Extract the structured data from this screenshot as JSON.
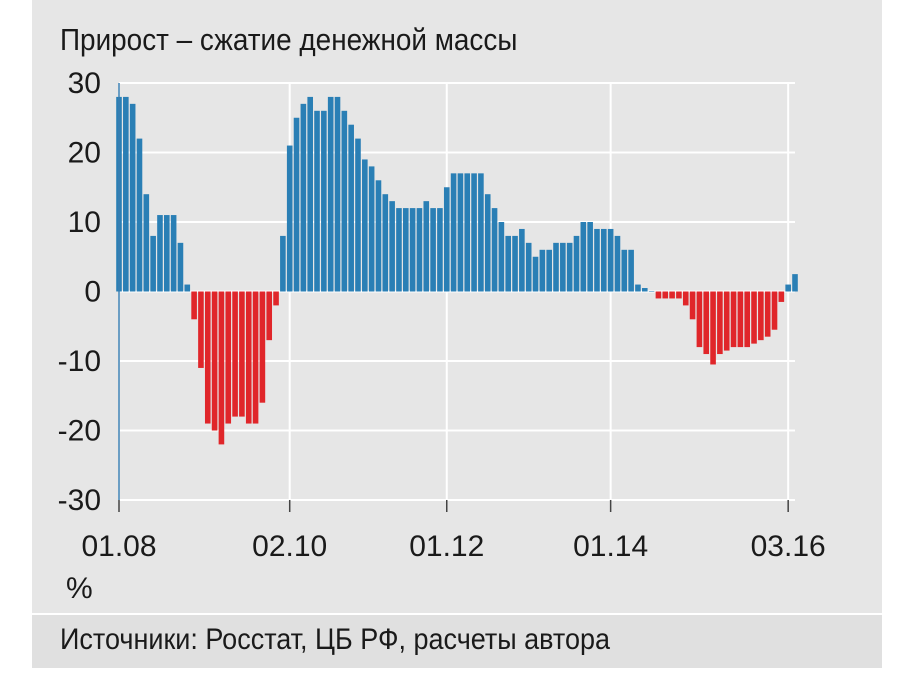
{
  "chart_data": {
    "type": "bar",
    "title": "Прирост – сжатие денежной массы",
    "ylabel": "%",
    "source": "Источники: Росстат, ЦБ РФ, расчеты автора",
    "ylim": [
      -30,
      30
    ],
    "yticks": [
      30,
      20,
      10,
      0,
      -10,
      -20,
      -30
    ],
    "ytick_labels": [
      "30",
      "20",
      "10",
      "0",
      "-10",
      "-20",
      "-30"
    ],
    "xtick_labels": [
      "01.08",
      "02.10",
      "01.12",
      "01.14",
      "03.16"
    ],
    "xtick_index": [
      0,
      25,
      48,
      72,
      98
    ],
    "grid": true,
    "colors": {
      "positive": "#2a7fb5",
      "negative": "#e0262a",
      "grid": "#ffffff",
      "axis": "#444444"
    },
    "values": [
      28,
      28,
      27,
      22,
      14,
      8,
      11,
      11,
      11,
      7,
      1,
      -4,
      -11,
      -19,
      -20,
      -22,
      -19,
      -18,
      -18,
      -19,
      -19,
      -16,
      -7,
      -2,
      8,
      21,
      25,
      27,
      28,
      26,
      26,
      28,
      28,
      26,
      24,
      22,
      19,
      18,
      16,
      14,
      13,
      12,
      12,
      12,
      12,
      13,
      12,
      12,
      15,
      17,
      17,
      17,
      17,
      17,
      14,
      12,
      10,
      8,
      8,
      9,
      7,
      5,
      6,
      6,
      7,
      7,
      7,
      8,
      10,
      10,
      9,
      9,
      9,
      8,
      6,
      6,
      1,
      0.5,
      0,
      -1,
      -1,
      -1,
      -1,
      -2,
      -4,
      -8,
      -9,
      -10.5,
      -9,
      -8.5,
      -8,
      -8,
      -8,
      -7.5,
      -7,
      -6.5,
      -5.5,
      -1.5,
      1,
      2.5
    ]
  }
}
